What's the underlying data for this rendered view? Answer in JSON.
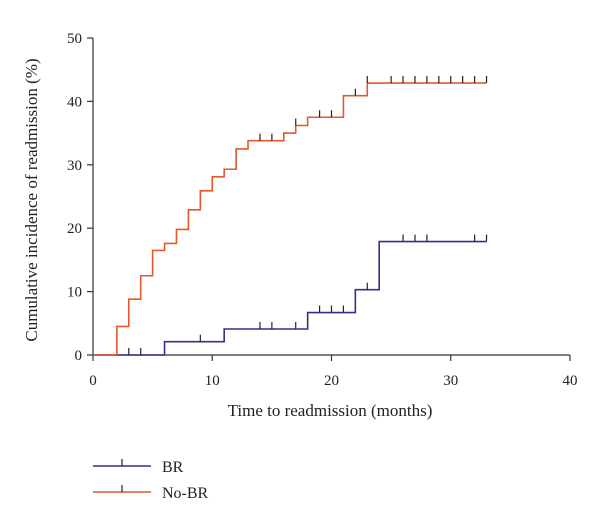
{
  "chart_data": {
    "type": "step",
    "title": "",
    "xlabel": "Time to readmission (months)",
    "ylabel": "Cumulative incidence of readmission (%)",
    "xlim": [
      0,
      40
    ],
    "ylim": [
      0,
      50
    ],
    "xticks": [
      "0",
      "10",
      "20",
      "30",
      "40"
    ],
    "yticks": [
      "0",
      "10",
      "20",
      "30",
      "40",
      "50"
    ],
    "grid": false,
    "legend_position": "bottom-left",
    "series": [
      {
        "name": "BR",
        "color": "#3c2a8c",
        "steps": [
          [
            0,
            0
          ],
          [
            6,
            2.1
          ],
          [
            11,
            4.1
          ],
          [
            18,
            6.7
          ],
          [
            22,
            10.3
          ],
          [
            24,
            17.9
          ],
          [
            33,
            17.9
          ]
        ],
        "censor_times": [
          3,
          4,
          9,
          14,
          15,
          17,
          19,
          20,
          21,
          23,
          26,
          27,
          28,
          32,
          33
        ]
      },
      {
        "name": "No-BR",
        "color": "#e4582c",
        "steps": [
          [
            0,
            0
          ],
          [
            2,
            4.5
          ],
          [
            3,
            8.8
          ],
          [
            4,
            12.5
          ],
          [
            5,
            16.5
          ],
          [
            6,
            17.6
          ],
          [
            7,
            19.8
          ],
          [
            8,
            22.9
          ],
          [
            9,
            25.9
          ],
          [
            10,
            28.1
          ],
          [
            11,
            29.3
          ],
          [
            12,
            32.5
          ],
          [
            13,
            33.8
          ],
          [
            16,
            35.0
          ],
          [
            17,
            36.2
          ],
          [
            18,
            37.5
          ],
          [
            21,
            40.9
          ],
          [
            23,
            42.9
          ],
          [
            33,
            42.9
          ]
        ],
        "censor_times": [
          14,
          15,
          17,
          19,
          20,
          22,
          23,
          25,
          26,
          27,
          28,
          29,
          30,
          31,
          32,
          33
        ]
      }
    ]
  },
  "colors": {
    "axis": "#333333"
  }
}
